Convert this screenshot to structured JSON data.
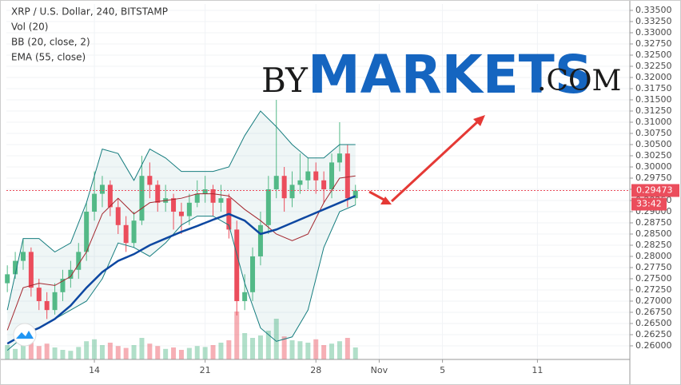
{
  "chart_data": {
    "type": "candlestick",
    "title": "XRP / U.S. Dollar, 240, BITSTAMP",
    "indicators": [
      "Vol (20)",
      "BB (20, close, 2)",
      "EMA (55, close)"
    ],
    "watermark": {
      "prefix": "BY",
      "main": "MARKETS",
      "suffix": ".COM"
    },
    "ylim": [
      0.25696,
      0.33643
    ],
    "yticks": [
      {
        "value": 0.26,
        "label": "0.26000"
      },
      {
        "value": 0.2625,
        "label": "0.26250"
      },
      {
        "value": 0.265,
        "label": "0.26500"
      },
      {
        "value": 0.2675,
        "label": "0.26750"
      },
      {
        "value": 0.27,
        "label": "0.27000"
      },
      {
        "value": 0.2725,
        "label": "0.27250"
      },
      {
        "value": 0.275,
        "label": "0.27500"
      },
      {
        "value": 0.2775,
        "label": "0.27750"
      },
      {
        "value": 0.28,
        "label": "0.28000"
      },
      {
        "value": 0.2825,
        "label": "0.28250"
      },
      {
        "value": 0.285,
        "label": "0.28500"
      },
      {
        "value": 0.2875,
        "label": "0.28750"
      },
      {
        "value": 0.29,
        "label": "0.29000"
      },
      {
        "value": 0.2925,
        "label": "0.29250"
      },
      {
        "value": 0.295,
        "label": "0.29500"
      },
      {
        "value": 0.2975,
        "label": "0.29750"
      },
      {
        "value": 0.3,
        "label": "0.30000"
      },
      {
        "value": 0.3025,
        "label": "0.30250"
      },
      {
        "value": 0.305,
        "label": "0.30500"
      },
      {
        "value": 0.3075,
        "label": "0.30750"
      },
      {
        "value": 0.31,
        "label": "0.31000"
      },
      {
        "value": 0.3125,
        "label": "0.31250"
      },
      {
        "value": 0.315,
        "label": "0.31500"
      },
      {
        "value": 0.3175,
        "label": "0.31750"
      },
      {
        "value": 0.32,
        "label": "0.32000"
      },
      {
        "value": 0.3225,
        "label": "0.32250"
      },
      {
        "value": 0.325,
        "label": "0.32500"
      },
      {
        "value": 0.3275,
        "label": "0.32750"
      },
      {
        "value": 0.33,
        "label": "0.33000"
      },
      {
        "value": 0.3325,
        "label": "0.33250"
      },
      {
        "value": 0.335,
        "label": "0.33500"
      }
    ],
    "xlim": [
      8.44,
      47.84
    ],
    "xticks": [
      14,
      21,
      28,
      {
        "value": 32,
        "label": "Nov"
      },
      {
        "value": 36,
        "label": "5"
      },
      {
        "value": 42,
        "label": "11"
      }
    ],
    "grid": true,
    "up_color": "#53b987",
    "down_color": "#eb4d5c",
    "x": [
      8.5,
      9,
      9.5,
      10,
      10.5,
      11,
      11.5,
      12,
      12.5,
      13,
      13.5,
      14,
      14.5,
      15,
      15.5,
      16,
      16.5,
      17,
      17.5,
      18,
      18.5,
      19,
      19.5,
      20,
      20.5,
      21,
      21.5,
      22,
      22.5,
      23,
      23.5,
      24,
      24.5,
      25,
      25.5,
      26,
      26.5,
      27,
      27.5,
      28,
      28.5,
      29,
      29.5,
      30,
      30.5
    ],
    "open": [
      0.274,
      0.276,
      0.279,
      0.281,
      0.273,
      0.27,
      0.268,
      0.272,
      0.275,
      0.277,
      0.281,
      0.29,
      0.294,
      0.296,
      0.291,
      0.287,
      0.283,
      0.288,
      0.298,
      0.296,
      0.292,
      0.293,
      0.29,
      0.289,
      0.292,
      0.294,
      0.295,
      0.292,
      0.293,
      0.286,
      0.27,
      0.272,
      0.28,
      0.287,
      0.295,
      0.298,
      0.293,
      0.296,
      0.297,
      0.299,
      0.297,
      0.295,
      0.301,
      0.303,
      0.293
    ],
    "high": [
      0.278,
      0.281,
      0.284,
      0.282,
      0.275,
      0.272,
      0.274,
      0.277,
      0.279,
      0.283,
      0.292,
      0.299,
      0.298,
      0.297,
      0.293,
      0.289,
      0.29,
      0.3025,
      0.301,
      0.297,
      0.296,
      0.294,
      0.292,
      0.294,
      0.297,
      0.298,
      0.296,
      0.296,
      0.294,
      0.288,
      0.276,
      0.282,
      0.29,
      0.298,
      0.315,
      0.3,
      0.299,
      0.303,
      0.302,
      0.301,
      0.299,
      0.303,
      0.31,
      0.305,
      0.296
    ],
    "low": [
      0.272,
      0.275,
      0.277,
      0.271,
      0.268,
      0.266,
      0.267,
      0.27,
      0.273,
      0.275,
      0.279,
      0.288,
      0.291,
      0.289,
      0.285,
      0.281,
      0.282,
      0.287,
      0.293,
      0.29,
      0.29,
      0.286,
      0.285,
      0.287,
      0.291,
      0.292,
      0.289,
      0.29,
      0.284,
      0.2668,
      0.268,
      0.27,
      0.278,
      0.285,
      0.293,
      0.29,
      0.291,
      0.294,
      0.295,
      0.294,
      0.292,
      0.293,
      0.299,
      0.291,
      0.2915
    ],
    "close": [
      0.276,
      0.279,
      0.281,
      0.273,
      0.27,
      0.268,
      0.272,
      0.275,
      0.277,
      0.281,
      0.29,
      0.294,
      0.296,
      0.291,
      0.287,
      0.283,
      0.288,
      0.298,
      0.296,
      0.292,
      0.293,
      0.29,
      0.289,
      0.292,
      0.294,
      0.295,
      0.292,
      0.293,
      0.286,
      0.27,
      0.272,
      0.28,
      0.287,
      0.295,
      0.298,
      0.293,
      0.296,
      0.297,
      0.299,
      0.297,
      0.295,
      0.301,
      0.303,
      0.293,
      0.29473
    ],
    "volume": [
      30,
      22,
      35,
      40,
      28,
      33,
      25,
      20,
      18,
      26,
      38,
      42,
      30,
      35,
      28,
      24,
      30,
      45,
      33,
      28,
      22,
      25,
      20,
      24,
      28,
      26,
      30,
      35,
      40,
      100,
      55,
      45,
      50,
      60,
      85,
      48,
      40,
      38,
      35,
      42,
      30,
      33,
      38,
      45,
      25
    ],
    "lines": {
      "x": [
        8.5,
        9.5,
        10.5,
        11.5,
        12.5,
        13.5,
        14.5,
        15.5,
        16.5,
        17.5,
        18.5,
        19.5,
        20.5,
        21.5,
        22.5,
        23.5,
        24.5,
        25.5,
        26.5,
        27.5,
        28.5,
        29.5,
        30.5
      ],
      "series": [
        {
          "name": "BB upper",
          "color": "#167d7f",
          "values": [
            0.268,
            0.284,
            0.284,
            0.281,
            0.283,
            0.292,
            0.304,
            0.303,
            0.297,
            0.304,
            0.302,
            0.299,
            0.299,
            0.299,
            0.3,
            0.307,
            0.3125,
            0.309,
            0.305,
            0.302,
            0.302,
            0.305,
            0.305
          ]
        },
        {
          "name": "BB lower",
          "color": "#167d7f",
          "values": [
            0.259,
            0.262,
            0.264,
            0.266,
            0.268,
            0.27,
            0.275,
            0.283,
            0.282,
            0.28,
            0.283,
            0.287,
            0.289,
            0.289,
            0.287,
            0.274,
            0.264,
            0.261,
            0.262,
            0.268,
            0.282,
            0.29,
            0.2915
          ]
        },
        {
          "name": "BB basis",
          "color": "#a3262e",
          "values": [
            0.2635,
            0.273,
            0.274,
            0.2735,
            0.2755,
            0.281,
            0.2895,
            0.293,
            0.2895,
            0.292,
            0.2925,
            0.293,
            0.294,
            0.294,
            0.2935,
            0.2905,
            0.288,
            0.285,
            0.2835,
            0.285,
            0.292,
            0.2975,
            0.298
          ]
        },
        {
          "name": "EMA",
          "color": "#0d47a1",
          "values": [
            0.2605,
            0.2625,
            0.264,
            0.266,
            0.269,
            0.273,
            0.2765,
            0.279,
            0.2805,
            0.2825,
            0.284,
            0.2855,
            0.2868,
            0.2882,
            0.2895,
            0.288,
            0.285,
            0.286,
            0.2875,
            0.289,
            0.2905,
            0.292,
            0.2935
          ]
        }
      ]
    },
    "last_price": 0.29473,
    "countdown": "33:42"
  }
}
